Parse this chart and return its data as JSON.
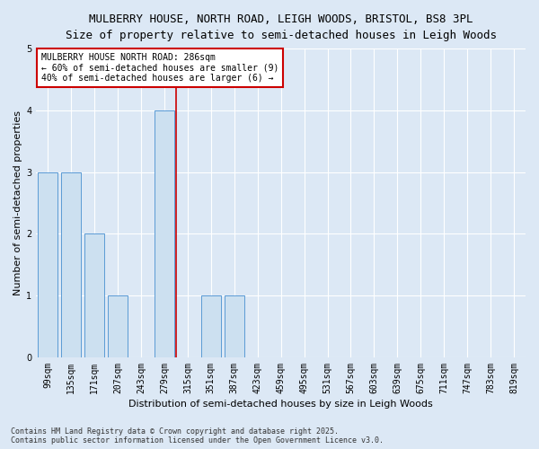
{
  "title_line1": "MULBERRY HOUSE, NORTH ROAD, LEIGH WOODS, BRISTOL, BS8 3PL",
  "title_line2": "Size of property relative to semi-detached houses in Leigh Woods",
  "categories": [
    "99sqm",
    "135sqm",
    "171sqm",
    "207sqm",
    "243sqm",
    "279sqm",
    "315sqm",
    "351sqm",
    "387sqm",
    "423sqm",
    "459sqm",
    "495sqm",
    "531sqm",
    "567sqm",
    "603sqm",
    "639sqm",
    "675sqm",
    "711sqm",
    "747sqm",
    "783sqm",
    "819sqm"
  ],
  "values": [
    3,
    3,
    2,
    1,
    0,
    4,
    0,
    1,
    1,
    0,
    0,
    0,
    0,
    0,
    0,
    0,
    0,
    0,
    0,
    0,
    0
  ],
  "bar_color": "#cce0f0",
  "bar_edge_color": "#5b9bd5",
  "red_line_x": 5.5,
  "ylim": [
    0,
    5
  ],
  "ylabel": "Number of semi-detached properties",
  "xlabel": "Distribution of semi-detached houses by size in Leigh Woods",
  "annotation_title": "MULBERRY HOUSE NORTH ROAD: 286sqm",
  "annotation_line1": "← 60% of semi-detached houses are smaller (9)",
  "annotation_line2": "40% of semi-detached houses are larger (6) →",
  "annotation_box_color": "#ffffff",
  "annotation_box_edge_color": "#cc0000",
  "footer": "Contains HM Land Registry data © Crown copyright and database right 2025.\nContains public sector information licensed under the Open Government Licence v3.0.",
  "background_color": "#dce8f5",
  "plot_bg_color": "#dce8f5",
  "grid_color": "#ffffff",
  "red_line_color": "#cc0000",
  "title_fontsize": 9,
  "subtitle_fontsize": 8.5,
  "tick_fontsize": 7,
  "ylabel_fontsize": 8,
  "xlabel_fontsize": 8,
  "annotation_fontsize": 7,
  "footer_fontsize": 6
}
